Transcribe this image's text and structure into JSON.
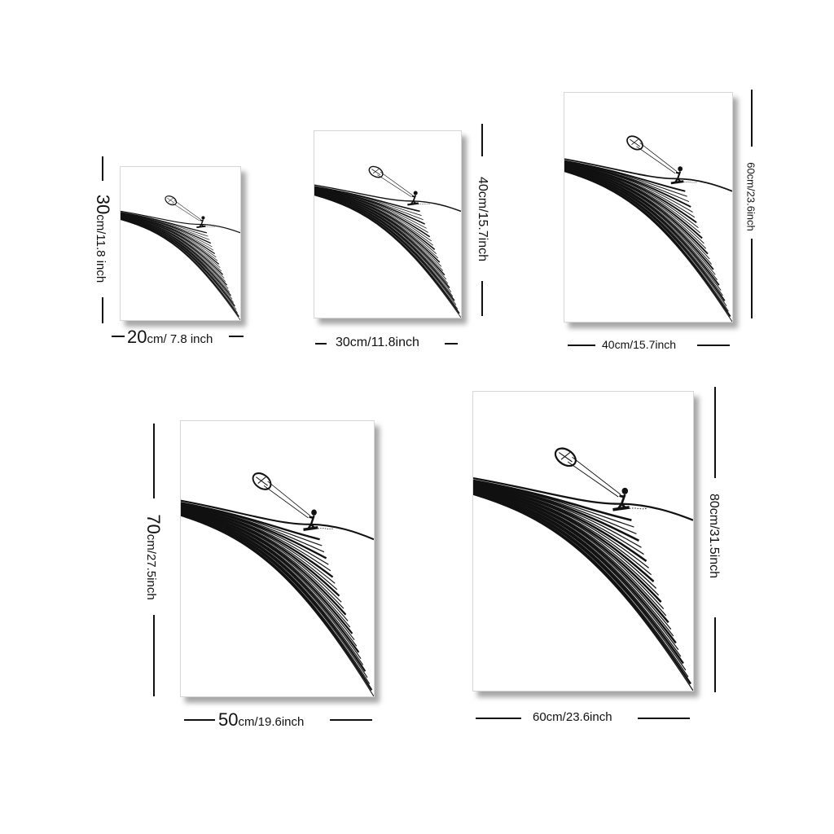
{
  "posters": [
    {
      "id": "p1",
      "width_big": "20",
      "width_rest": "cm/ 7.8 inch",
      "height_big": "30",
      "height_rest": "cm/11.8 inch"
    },
    {
      "id": "p2",
      "width_text": "30cm/11.8inch",
      "height_text": "40cm/15.7inch"
    },
    {
      "id": "p3",
      "width_text": "40cm/15.7inch",
      "height_text": "60cm/23.6inch"
    },
    {
      "id": "p4",
      "width_big": "50",
      "width_rest": "cm/19.6inch",
      "height_big": "70",
      "height_rest": "cm/27.5inch"
    },
    {
      "id": "p5",
      "width_text": "60cm/23.6inch",
      "height_text": "80cm/31.5inch"
    }
  ],
  "artwork": {
    "subject": "kitesurfer-illustration",
    "line_color": "#111111"
  }
}
